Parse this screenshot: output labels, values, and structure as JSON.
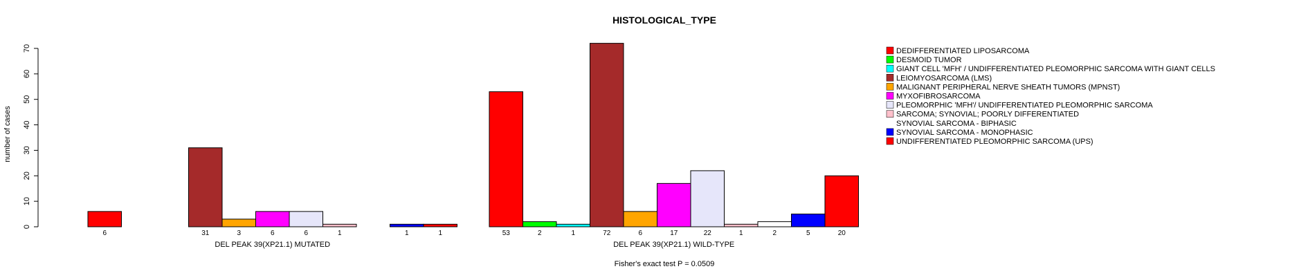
{
  "chart_data": {
    "type": "bar",
    "title": "HISTOLOGICAL_TYPE",
    "ylabel": "number of cases",
    "ylim": [
      0,
      70
    ],
    "yticks": [
      0,
      10,
      20,
      30,
      40,
      50,
      60,
      70
    ],
    "footnote": "Fisher's exact test P = 0.0509",
    "legend_position": "right",
    "categories": [
      "DEDIFFERENTIATED LIPOSARCOMA",
      "DESMOID TUMOR",
      "GIANT CELL 'MFH' / UNDIFFERENTIATED PLEOMORPHIC SARCOMA WITH GIANT CELLS",
      "LEIOMYOSARCOMA (LMS)",
      "MALIGNANT PERIPHERAL NERVE SHEATH TUMORS (MPNST)",
      "MYXOFIBROSARCOMA",
      "PLEOMORPHIC 'MFH'/ UNDIFFERENTIATED PLEOMORPHIC SARCOMA",
      "SARCOMA; SYNOVIAL; POORLY DIFFERENTIATED",
      "SYNOVIAL SARCOMA - BIPHASIC",
      "SYNOVIAL SARCOMA - MONOPHASIC",
      "UNDIFFERENTIATED PLEOMORPHIC SARCOMA (UPS)"
    ],
    "colors": [
      "#FF0000",
      "#00FF00",
      "#00FFFF",
      "#A52A2A",
      "#FFA500",
      "#FF00FF",
      "#E6E6FA",
      "#FFC0CB",
      "#FFFFFF",
      "#0000FF",
      "#FF0000"
    ],
    "groups": [
      {
        "name": "DEL PEAK 39(XP21.1) MUTATED",
        "values": [
          6,
          0,
          0,
          31,
          3,
          6,
          6,
          1,
          0,
          1,
          1
        ],
        "count_labels": [
          "6",
          "",
          "",
          "31",
          "3",
          "6",
          "6",
          "1",
          "",
          "1",
          "1"
        ]
      },
      {
        "name": "DEL PEAK 39(XP21.1) WILD-TYPE",
        "values": [
          53,
          2,
          1,
          72,
          6,
          17,
          22,
          1,
          2,
          5,
          20
        ],
        "count_labels": [
          "53",
          "2",
          "1",
          "72",
          "6",
          "17",
          "22",
          "1",
          "2",
          "5",
          "20"
        ]
      }
    ]
  }
}
